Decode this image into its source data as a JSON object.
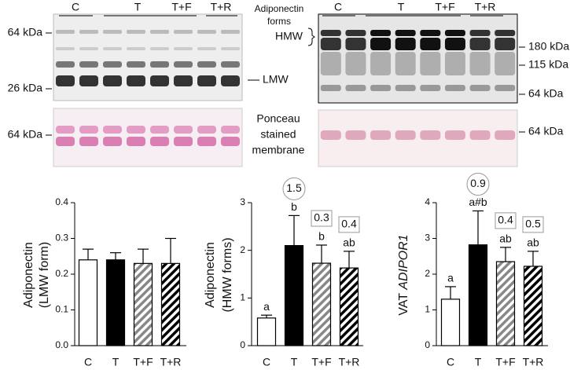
{
  "blots": {
    "left": {
      "lanes": [
        "C",
        "T",
        "T+F",
        "T+R"
      ],
      "markers": [
        "64 kDa",
        "26 kDa"
      ],
      "band_label": "LMW",
      "ponceau_marker": "64 kDa"
    },
    "ponceau_label": [
      "Ponceau",
      "stained",
      "membrane"
    ],
    "right": {
      "title": [
        "Adiponectin",
        "forms"
      ],
      "band_label": "HMW",
      "lanes": [
        "C",
        "T",
        "T+F",
        "T+R"
      ],
      "markers": [
        "180 kDa",
        "115 kDa",
        "64 kDa"
      ],
      "ponceau_marker": "64 kDa"
    }
  },
  "chart_data": [
    {
      "type": "bar",
      "ylabel": [
        "Adiponectin",
        "(LMW form)"
      ],
      "categories": [
        "C",
        "T",
        "T+F",
        "T+R"
      ],
      "values": [
        0.24,
        0.24,
        0.23,
        0.23
      ],
      "errors": [
        0.03,
        0.02,
        0.04,
        0.07
      ],
      "colors": [
        "#ffffff",
        "#000000",
        "#888888",
        "#000000"
      ],
      "hatch": [
        false,
        false,
        true,
        true
      ],
      "ylim": [
        0,
        0.4
      ],
      "yticks": [
        {
          "value": 0,
          "label": "0.0"
        },
        0.1,
        0.2,
        0.3,
        0.4
      ]
    },
    {
      "type": "bar",
      "ylabel": [
        "Adiponectin",
        "(HMW forms)"
      ],
      "categories": [
        "C",
        "T",
        "T+F",
        "T+R"
      ],
      "values": [
        0.58,
        2.1,
        1.73,
        1.63
      ],
      "errors": [
        0.06,
        0.63,
        0.38,
        0.35
      ],
      "letters": [
        "a",
        "b",
        "b",
        "ab"
      ],
      "annotations": [
        null,
        "1.5",
        "0.3",
        "0.4"
      ],
      "annotation_shapes": [
        null,
        "circle",
        "box",
        "box"
      ],
      "colors": [
        "#ffffff",
        "#000000",
        "#888888",
        "#000000"
      ],
      "hatch": [
        false,
        false,
        true,
        true
      ],
      "ylim": [
        0,
        3
      ],
      "yticks": [
        0,
        1,
        2,
        3
      ]
    },
    {
      "type": "bar",
      "ylabel": [
        "VAT"
      ],
      "ylabel_italic": "ADIPOR1",
      "categories": [
        "C",
        "T",
        "T+F",
        "T+R"
      ],
      "values": [
        1.3,
        2.82,
        2.35,
        2.22
      ],
      "errors": [
        0.35,
        0.95,
        0.4,
        0.42
      ],
      "letters": [
        "a",
        "a#b",
        "ab",
        "ab"
      ],
      "annotations": [
        null,
        "0.9",
        "0.4",
        "0.5"
      ],
      "annotation_shapes": [
        null,
        "circle",
        "box",
        "box"
      ],
      "colors": [
        "#ffffff",
        "#000000",
        "#888888",
        "#000000"
      ],
      "hatch": [
        false,
        false,
        true,
        true
      ],
      "ylim": [
        0,
        4
      ],
      "yticks": [
        0,
        1,
        2,
        3,
        4
      ]
    }
  ]
}
